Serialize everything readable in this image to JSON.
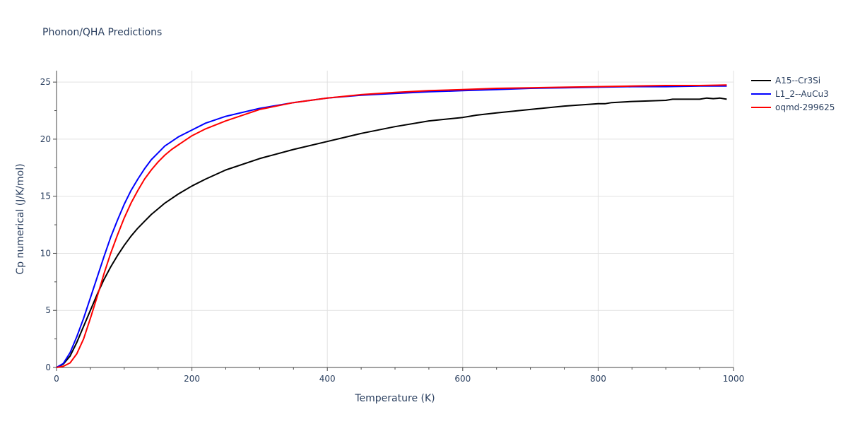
{
  "chart_data": {
    "type": "line",
    "title": "Phonon/QHA Predictions",
    "xlabel": "Temperature (K)",
    "ylabel": "Cp numerical (J/K/mol)",
    "xlim": [
      0,
      1000
    ],
    "ylim": [
      0,
      26
    ],
    "xticks": [
      0,
      200,
      400,
      600,
      800,
      1000
    ],
    "yticks": [
      0,
      5,
      10,
      15,
      20,
      25
    ],
    "grid": true,
    "legend_position": "top-right",
    "series": [
      {
        "name": "A15--Cr3Si",
        "color": "#000000",
        "x": [
          0,
          10,
          20,
          30,
          40,
          50,
          60,
          70,
          80,
          90,
          100,
          110,
          120,
          130,
          140,
          150,
          160,
          170,
          180,
          200,
          220,
          250,
          300,
          350,
          400,
          450,
          500,
          550,
          600,
          610,
          620,
          650,
          700,
          750,
          800,
          810,
          820,
          850,
          900,
          910,
          950,
          960,
          970,
          980,
          990
        ],
        "y": [
          0,
          0.3,
          1.0,
          2.2,
          3.6,
          5.0,
          6.4,
          7.7,
          8.8,
          9.8,
          10.7,
          11.5,
          12.2,
          12.8,
          13.4,
          13.9,
          14.4,
          14.8,
          15.2,
          15.9,
          16.5,
          17.3,
          18.3,
          19.1,
          19.8,
          20.5,
          21.1,
          21.6,
          21.9,
          22.0,
          22.1,
          22.3,
          22.6,
          22.9,
          23.1,
          23.1,
          23.2,
          23.3,
          23.4,
          23.5,
          23.5,
          23.6,
          23.55,
          23.6,
          23.5
        ]
      },
      {
        "name": "L1_2--AuCu3",
        "color": "#0000ff",
        "x": [
          0,
          10,
          20,
          30,
          40,
          50,
          60,
          70,
          80,
          90,
          100,
          110,
          120,
          130,
          140,
          150,
          160,
          170,
          180,
          200,
          220,
          250,
          300,
          350,
          400,
          450,
          500,
          550,
          600,
          650,
          700,
          750,
          800,
          850,
          900,
          950,
          990
        ],
        "y": [
          0,
          0.35,
          1.3,
          2.7,
          4.3,
          6.1,
          7.9,
          9.7,
          11.4,
          12.9,
          14.3,
          15.5,
          16.5,
          17.4,
          18.2,
          18.8,
          19.4,
          19.8,
          20.2,
          20.8,
          21.4,
          22.0,
          22.7,
          23.2,
          23.6,
          23.85,
          24.0,
          24.15,
          24.25,
          24.35,
          24.45,
          24.5,
          24.55,
          24.6,
          24.6,
          24.65,
          24.65
        ]
      },
      {
        "name": "oqmd-299625",
        "color": "#ff0000",
        "x": [
          0,
          10,
          20,
          30,
          40,
          50,
          60,
          70,
          80,
          90,
          100,
          110,
          120,
          130,
          140,
          150,
          160,
          170,
          180,
          200,
          220,
          250,
          300,
          350,
          400,
          450,
          500,
          550,
          600,
          650,
          700,
          750,
          800,
          850,
          900,
          950,
          990
        ],
        "y": [
          0,
          0.1,
          0.4,
          1.2,
          2.5,
          4.3,
          6.2,
          8.2,
          10.0,
          11.6,
          13.1,
          14.4,
          15.5,
          16.5,
          17.3,
          18.0,
          18.6,
          19.1,
          19.5,
          20.3,
          20.9,
          21.6,
          22.6,
          23.2,
          23.6,
          23.9,
          24.1,
          24.25,
          24.35,
          24.45,
          24.5,
          24.55,
          24.6,
          24.65,
          24.7,
          24.7,
          24.75
        ]
      }
    ]
  }
}
